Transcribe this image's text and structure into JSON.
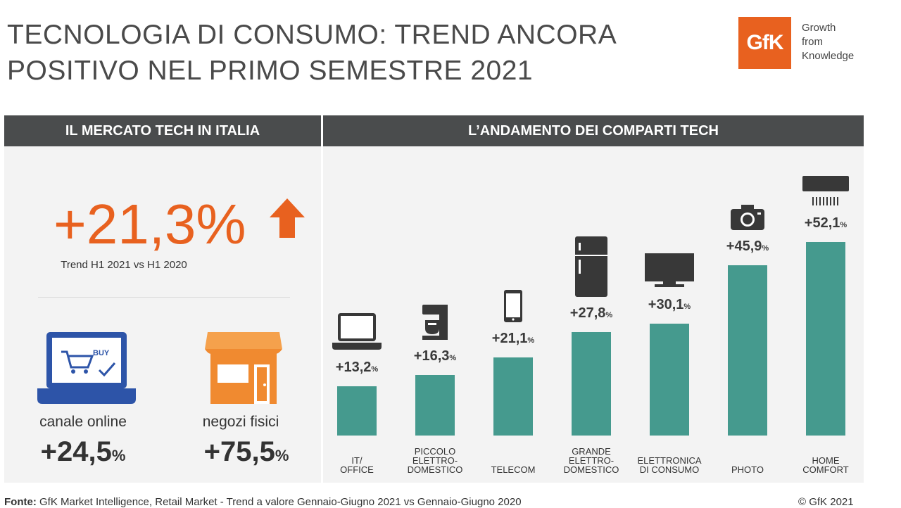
{
  "title": {
    "line1": "TECNOLOGIA DI CONSUMO: TREND ANCORA",
    "line2": "POSITIVO NEL PRIMO SEMESTRE 2021"
  },
  "logo": {
    "mark": "GfK",
    "tagline": [
      "Growth",
      "from",
      "Knowledge"
    ],
    "color": "#e8611f"
  },
  "left_panel": {
    "header": "IL MERCATO TECH IN ITALIA",
    "total": {
      "value": "+21,3%",
      "caption": "Trend H1 2021 vs H1 2020",
      "icon": "up-arrow-icon"
    },
    "channels": [
      {
        "icon": "laptop-cart-icon",
        "icon_text": "BUY",
        "label": "canale online",
        "value": "+24,5",
        "unit": "%"
      },
      {
        "icon": "store-icon",
        "label": "negozi fisici",
        "value": "+75,5",
        "unit": "%"
      }
    ]
  },
  "chart_data": {
    "type": "bar",
    "title": "L’ANDAMENTO DEI COMPARTI TECH",
    "categories": [
      [
        "IT/",
        "OFFICE"
      ],
      [
        "PICCOLO",
        "ELETTRO-",
        "DOMESTICO"
      ],
      [
        "TELECOM"
      ],
      [
        "GRANDE",
        "ELETTRO-",
        "DOMESTICO"
      ],
      [
        "ELETTRONICA",
        "DI CONSUMO"
      ],
      [
        "PHOTO"
      ],
      [
        "HOME",
        "COMFORT"
      ]
    ],
    "values": [
      13.2,
      16.3,
      21.1,
      27.8,
      30.1,
      45.9,
      52.1
    ],
    "labels": [
      "+13,2",
      "+16,3",
      "+21,1",
      "+27,8",
      "+30,1",
      "+45,9",
      "+52,1"
    ],
    "unit": "%",
    "icons": [
      "laptop-icon",
      "mixer-icon",
      "smartphone-icon",
      "fridge-icon",
      "tv-icon",
      "camera-icon",
      "air-conditioner-icon"
    ],
    "ylim": [
      0,
      52.1
    ],
    "grid": false,
    "bar_color": "#459a8e"
  },
  "footer": {
    "source_label": "Fonte:",
    "source_text": " GfK Market Intelligence, Retail Market - Trend a valore Gennaio-Giugno 2021 vs Gennaio-Giugno 2020",
    "copyright": "© GfK 2021"
  }
}
